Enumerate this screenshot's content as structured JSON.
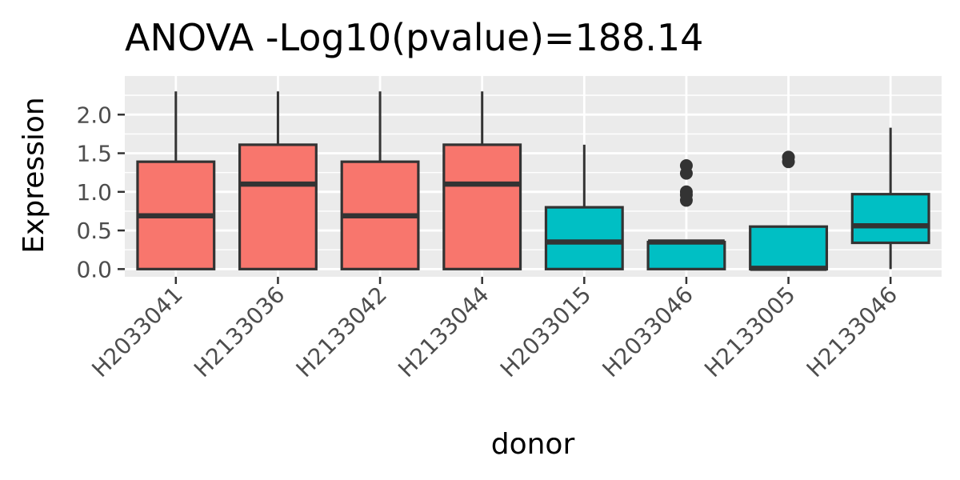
{
  "chart_data": {
    "type": "boxplot",
    "title": "ANOVA -Log10(pvalue)=188.14",
    "xlabel": "donor",
    "ylabel": "Expression",
    "ylim": [
      -0.1,
      2.5
    ],
    "yticks": [
      0.0,
      0.5,
      1.0,
      1.5,
      2.0
    ],
    "ytick_labels": [
      "0.0",
      "0.5",
      "1.0",
      "1.5",
      "2.0"
    ],
    "grid": true,
    "legend": "none",
    "panel_color": "#ebebeb",
    "grid_color": "#ffffff",
    "box_stroke_color": "#333333",
    "group_colors": {
      "A": "#f8766d",
      "B": "#00bfc4"
    },
    "categories": [
      "H2033041",
      "H2133036",
      "H2133042",
      "H2133044",
      "H2033015",
      "H2033046",
      "H2133005",
      "H2133046"
    ],
    "boxes": [
      {
        "category": "H2033041",
        "group": "A",
        "whisker_low": 0.0,
        "q1": 0.0,
        "median": 0.69,
        "q3": 1.39,
        "whisker_high": 2.3,
        "outliers": []
      },
      {
        "category": "H2133036",
        "group": "A",
        "whisker_low": 0.0,
        "q1": 0.0,
        "median": 1.1,
        "q3": 1.61,
        "whisker_high": 2.3,
        "outliers": []
      },
      {
        "category": "H2133042",
        "group": "A",
        "whisker_low": 0.0,
        "q1": 0.0,
        "median": 0.69,
        "q3": 1.39,
        "whisker_high": 2.3,
        "outliers": []
      },
      {
        "category": "H2133044",
        "group": "A",
        "whisker_low": 0.0,
        "q1": 0.0,
        "median": 1.1,
        "q3": 1.61,
        "whisker_high": 2.3,
        "outliers": []
      },
      {
        "category": "H2033015",
        "group": "B",
        "whisker_low": 0.0,
        "q1": 0.0,
        "median": 0.35,
        "q3": 0.8,
        "whisker_high": 1.61,
        "outliers": []
      },
      {
        "category": "H2033046",
        "group": "B",
        "whisker_low": 0.0,
        "q1": 0.0,
        "median": 0.35,
        "q3": 0.35,
        "whisker_high": 0.35,
        "outliers": [
          0.89,
          0.96,
          1.0,
          1.34,
          1.24
        ]
      },
      {
        "category": "H2133005",
        "group": "B",
        "whisker_low": 0.0,
        "q1": 0.0,
        "median": 0.01,
        "q3": 0.55,
        "whisker_high": 0.55,
        "outliers": [
          1.39,
          1.45
        ]
      },
      {
        "category": "H2133046",
        "group": "B",
        "whisker_low": 0.0,
        "q1": 0.34,
        "median": 0.56,
        "q3": 0.97,
        "whisker_high": 1.83,
        "outliers": []
      }
    ]
  }
}
